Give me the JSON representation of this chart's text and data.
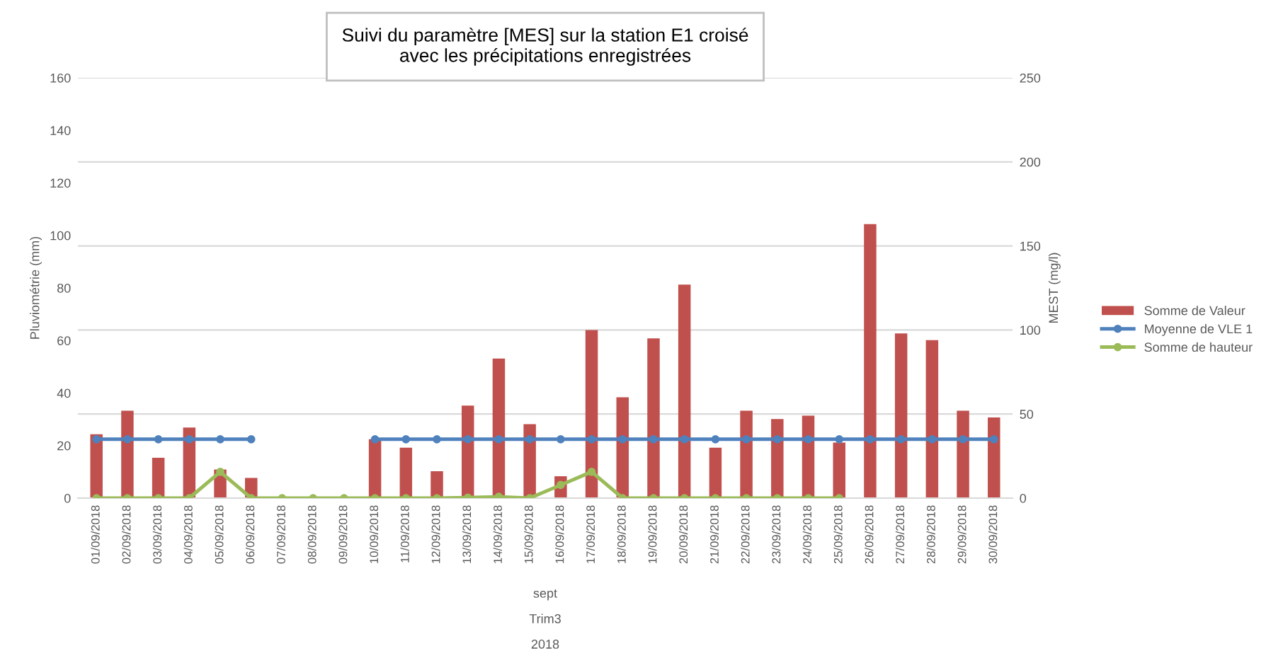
{
  "chart_data": {
    "type": "bar",
    "title": "Suivi du paramètre [MES] sur la station E1 croisé\navec les précipitations enregistrées",
    "categories": [
      "01/09/2018",
      "02/09/2018",
      "03/09/2018",
      "04/09/2018",
      "05/09/2018",
      "06/09/2018",
      "07/09/2018",
      "08/09/2018",
      "09/09/2018",
      "10/09/2018",
      "11/09/2018",
      "12/09/2018",
      "13/09/2018",
      "14/09/2018",
      "15/09/2018",
      "16/09/2018",
      "17/09/2018",
      "18/09/2018",
      "19/09/2018",
      "20/09/2018",
      "21/09/2018",
      "22/09/2018",
      "23/09/2018",
      "24/09/2018",
      "25/09/2018",
      "26/09/2018",
      "27/09/2018",
      "28/09/2018",
      "29/09/2018",
      "30/09/2018"
    ],
    "series": [
      {
        "name": "Somme de Valeur",
        "axis": "y2",
        "color": "#c0504d",
        "values": [
          38,
          52,
          24,
          42,
          17,
          12,
          null,
          null,
          null,
          35,
          30,
          16,
          55,
          83,
          44,
          13,
          100,
          60,
          95,
          127,
          30,
          52,
          47,
          49,
          33,
          163,
          98,
          94,
          52,
          48
        ]
      },
      {
        "name": "Moyenne de VLE 1",
        "type": "line",
        "axis": "y2",
        "color": "#4f81bd",
        "marker": "circle",
        "values": [
          35,
          35,
          35,
          35,
          35,
          35,
          null,
          null,
          null,
          35,
          35,
          35,
          35,
          35,
          35,
          35,
          35,
          35,
          35,
          35,
          35,
          35,
          35,
          35,
          35,
          35,
          35,
          35,
          35,
          35
        ]
      },
      {
        "name": "Somme de hauteur",
        "type": "line",
        "axis": "y",
        "color": "#9bbb59",
        "marker": "circle",
        "values": [
          0,
          0,
          0,
          0,
          10,
          0,
          0,
          0,
          0,
          0,
          0,
          0,
          0.2,
          0.5,
          0,
          5,
          10,
          0,
          0,
          0,
          0,
          0,
          0,
          0,
          0,
          null,
          null,
          null,
          null,
          null
        ]
      }
    ],
    "ylabel": "Pluviométrie (mm)",
    "y2label": "MEST (mg/l)",
    "ylim": [
      0,
      160
    ],
    "yticks": [
      0,
      20,
      40,
      60,
      80,
      100,
      120,
      140,
      160
    ],
    "y2lim": [
      0,
      250
    ],
    "y2ticks": [
      0,
      50,
      100,
      150,
      200,
      250
    ],
    "grid": "y",
    "legend": "right",
    "annotations": [
      "sept",
      "Trim3",
      "2018"
    ]
  }
}
